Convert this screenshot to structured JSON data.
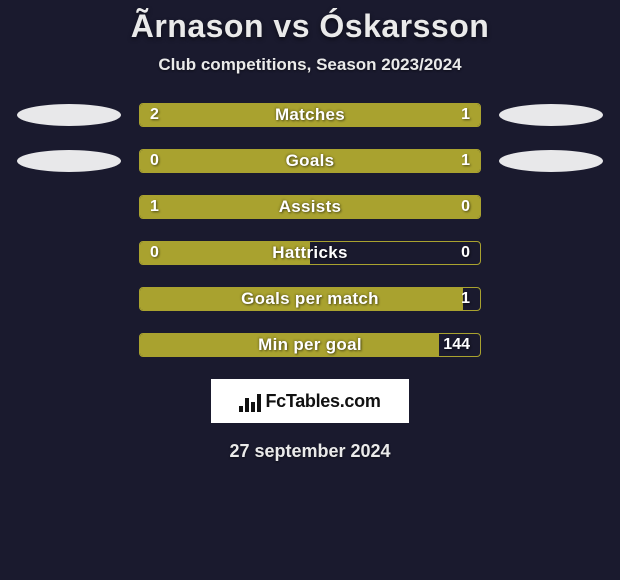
{
  "title": "Ãrnason vs Óskarsson",
  "subtitle": "Club competitions, Season 2023/2024",
  "date": "27 september 2024",
  "fctables_label": "FcTables.com",
  "colors": {
    "background": "#1a1a2e",
    "text": "#eaeaea",
    "bar_border": "#a9a22f",
    "bar_fill": "#a9a22f",
    "ellipse": "#e8e8ea",
    "white": "#ffffff",
    "black": "#111111"
  },
  "rows": [
    {
      "label": "Matches",
      "left_val": "2",
      "right_val": "1",
      "left_pct": 67,
      "right_pct": 33,
      "show_left_ellipse": true,
      "show_right_ellipse": true
    },
    {
      "label": "Goals",
      "left_val": "0",
      "right_val": "1",
      "left_pct": 20,
      "right_pct": 80,
      "show_left_ellipse": true,
      "show_right_ellipse": true
    },
    {
      "label": "Assists",
      "left_val": "1",
      "right_val": "0",
      "left_pct": 100,
      "right_pct": 0,
      "show_left_ellipse": false,
      "show_right_ellipse": false
    },
    {
      "label": "Hattricks",
      "left_val": "0",
      "right_val": "0",
      "left_pct": 50,
      "right_pct": 0,
      "show_left_ellipse": false,
      "show_right_ellipse": false
    },
    {
      "label": "Goals per match",
      "left_val": "",
      "right_val": "1",
      "left_pct": 95,
      "right_pct": 0,
      "show_left_ellipse": false,
      "show_right_ellipse": false
    },
    {
      "label": "Min per goal",
      "left_val": "",
      "right_val": "144",
      "left_pct": 88,
      "right_pct": 0,
      "show_left_ellipse": false,
      "show_right_ellipse": false
    }
  ],
  "fctables_icon_bars": [
    6,
    14,
    10,
    18
  ]
}
